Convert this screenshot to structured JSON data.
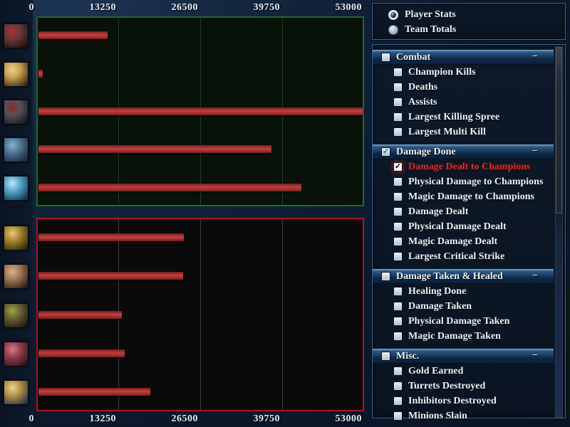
{
  "view_controls": {
    "options": [
      {
        "label": "Player Stats",
        "selected": true
      },
      {
        "label": "Team Totals",
        "selected": false
      }
    ]
  },
  "stats_panel": {
    "collapse_glyph": "−",
    "check_glyph": "✓",
    "sections": [
      {
        "label": "Combat",
        "checked": false,
        "items": [
          {
            "label": "Champion Kills",
            "checked": false
          },
          {
            "label": "Deaths",
            "checked": false
          },
          {
            "label": "Assists",
            "checked": false
          },
          {
            "label": "Largest Killing Spree",
            "checked": false
          },
          {
            "label": "Largest Multi Kill",
            "checked": false
          }
        ]
      },
      {
        "label": "Damage Done",
        "checked": true,
        "items": [
          {
            "label": "Damage Dealt to Champions",
            "checked": true,
            "highlighted": true
          },
          {
            "label": "Physical Damage to Champions",
            "checked": false
          },
          {
            "label": "Magic Damage to Champions",
            "checked": false
          },
          {
            "label": "Damage Dealt",
            "checked": false
          },
          {
            "label": "Physical Damage Dealt",
            "checked": false
          },
          {
            "label": "Magic Damage Dealt",
            "checked": false
          },
          {
            "label": "Largest Critical Strike",
            "checked": false
          }
        ]
      },
      {
        "label": "Damage Taken & Healed",
        "checked": false,
        "items": [
          {
            "label": "Healing Done",
            "checked": false
          },
          {
            "label": "Damage Taken",
            "checked": false
          },
          {
            "label": "Physical Damage Taken",
            "checked": false
          },
          {
            "label": "Magic Damage Taken",
            "checked": false
          }
        ]
      },
      {
        "label": "Misc.",
        "checked": false,
        "items": [
          {
            "label": "Gold Earned",
            "checked": false
          },
          {
            "label": "Turrets Destroyed",
            "checked": false
          },
          {
            "label": "Inhibitors Destroyed",
            "checked": false
          },
          {
            "label": "Minions Slain",
            "checked": false
          }
        ]
      }
    ]
  },
  "chart_data": {
    "type": "bar",
    "orientation": "horizontal",
    "metric": "Damage Dealt to Champions",
    "xlim": [
      0,
      53000
    ],
    "x_ticks": [
      "0",
      "13250",
      "26500",
      "39750",
      "53000"
    ],
    "grid": true,
    "bar_color": "#a93030",
    "teams": [
      {
        "name": "team-1",
        "border_color": "#1f6b2d",
        "players": [
          {
            "slot": 1,
            "value": 11300,
            "portrait_colors": [
              "#6b3a3a",
              "#1c0f10",
              "#a83030"
            ]
          },
          {
            "slot": 2,
            "value": 700,
            "portrait_colors": [
              "#caa050",
              "#3a2414",
              "#e8d090"
            ]
          },
          {
            "slot": 3,
            "value": 52900,
            "portrait_colors": [
              "#55525c",
              "#16141a",
              "#8a2a2a"
            ]
          },
          {
            "slot": 4,
            "value": 38000,
            "portrait_colors": [
              "#4f7693",
              "#152636",
              "#8ab4cf"
            ]
          },
          {
            "slot": 5,
            "value": 42900,
            "portrait_colors": [
              "#58a8cc",
              "#103250",
              "#bfe6f4"
            ]
          }
        ]
      },
      {
        "name": "team-2",
        "border_color": "#aa1426",
        "players": [
          {
            "slot": 1,
            "value": 23700,
            "portrait_colors": [
              "#a8862f",
              "#2e2208",
              "#e6cc7a"
            ]
          },
          {
            "slot": 2,
            "value": 23600,
            "portrait_colors": [
              "#a37a5a",
              "#2a1a12",
              "#d8b090"
            ]
          },
          {
            "slot": 3,
            "value": 13600,
            "portrait_colors": [
              "#6a6136",
              "#1a150a",
              "#9aa83a"
            ]
          },
          {
            "slot": 4,
            "value": 14100,
            "portrait_colors": [
              "#92404e",
              "#2c0e16",
              "#d87a88"
            ]
          },
          {
            "slot": 5,
            "value": 18200,
            "portrait_colors": [
              "#b99346",
              "#243246",
              "#e8d498"
            ]
          }
        ]
      }
    ]
  }
}
